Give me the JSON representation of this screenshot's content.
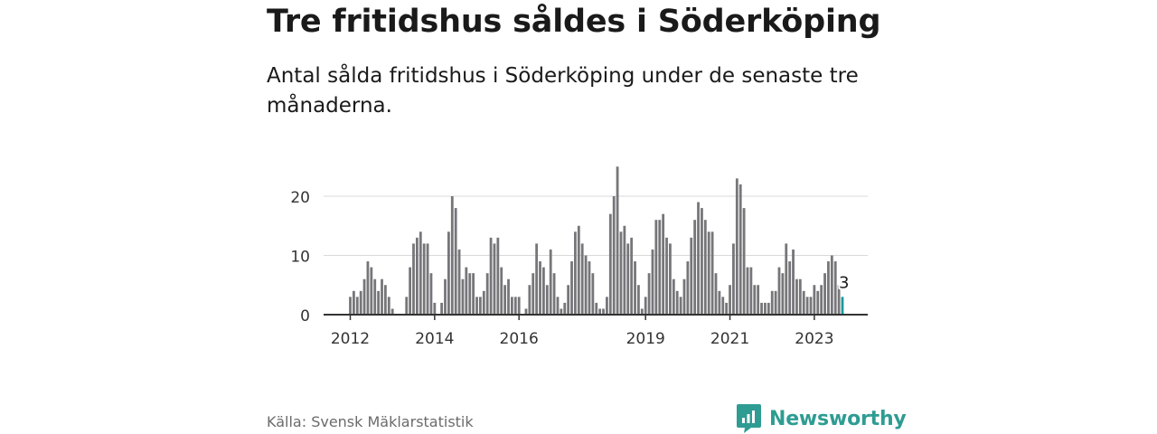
{
  "header": {
    "title": "Tre fritidshus såldes i Söderköping",
    "subtitle": "Antal sålda fritidshus i Söderköping under de senaste tre månaderna."
  },
  "footer": {
    "source": "Källa: Svensk Mäklarstatistik",
    "brand": "Newsworthy",
    "brand_icon": "bar-chart-speech-bubble-icon"
  },
  "colors": {
    "bar": "#76767a",
    "highlight": "#1a9a9e",
    "grid": "#d9d9d9",
    "axis": "#333333",
    "brand": "#2e9c92"
  },
  "chart_data": {
    "type": "bar",
    "x_axis_type": "time-monthly",
    "first_month": "2012-01",
    "ylim": [
      0,
      25
    ],
    "yticks": [
      0,
      10,
      20
    ],
    "xticks": [
      "2012",
      "2014",
      "2016",
      "2019",
      "2021",
      "2023"
    ],
    "grid": true,
    "highlight_last": true,
    "last_label": "3",
    "values": [
      3,
      4,
      3,
      4,
      6,
      9,
      8,
      6,
      4,
      6,
      5,
      3,
      1,
      0,
      0,
      0,
      3,
      8,
      12,
      13,
      14,
      12,
      12,
      7,
      2,
      0,
      2,
      6,
      14,
      20,
      18,
      11,
      6,
      8,
      7,
      7,
      3,
      3,
      4,
      7,
      13,
      12,
      13,
      8,
      5,
      6,
      3,
      3,
      3,
      0,
      1,
      5,
      7,
      12,
      9,
      8,
      5,
      11,
      7,
      3,
      1,
      2,
      5,
      9,
      14,
      15,
      12,
      10,
      9,
      7,
      2,
      1,
      1,
      3,
      17,
      20,
      25,
      14,
      15,
      12,
      13,
      9,
      5,
      1,
      3,
      7,
      11,
      16,
      16,
      17,
      13,
      12,
      6,
      4,
      3,
      6,
      9,
      13,
      16,
      19,
      18,
      16,
      14,
      14,
      7,
      4,
      3,
      2,
      5,
      12,
      23,
      22,
      18,
      8,
      8,
      5,
      5,
      2,
      2,
      2,
      4,
      4,
      8,
      7,
      12,
      9,
      11,
      6,
      6,
      4,
      3,
      3,
      5,
      4,
      5,
      7,
      9,
      10,
      9,
      5,
      3
    ]
  }
}
